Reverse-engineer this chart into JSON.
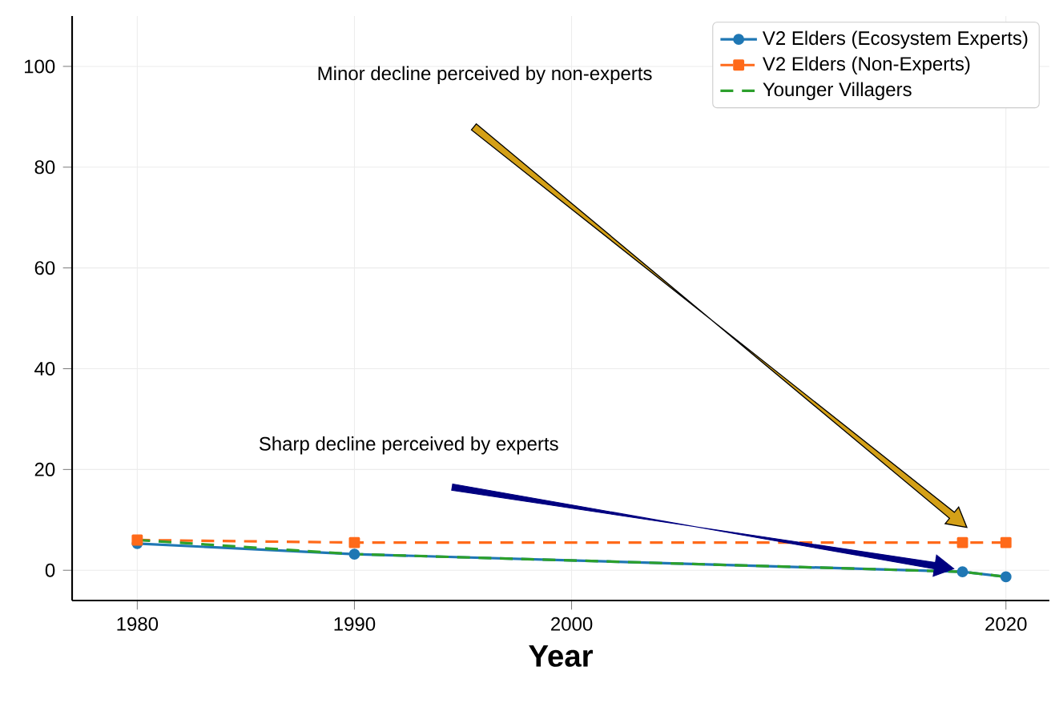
{
  "chart_data": {
    "type": "line",
    "xlabel": "Year",
    "x": [
      1980,
      1990,
      2018,
      2020
    ],
    "xlim": [
      1977,
      2022
    ],
    "xticks": [
      1980,
      1990,
      2000,
      2020
    ],
    "ylim": [
      -6,
      110
    ],
    "yticks": [
      0,
      20,
      40,
      60,
      80,
      100
    ],
    "series": [
      {
        "name": "V2 Elders (Ecosystem Experts)",
        "color": "#1f77b4",
        "values": [
          5.3,
          3.2,
          -0.3,
          -1.3
        ],
        "marker": "circle",
        "line_style": "solid"
      },
      {
        "name": "V2 Elders (Non-Experts)",
        "color": "#ff6a1a",
        "values": [
          6,
          5.5,
          5.5,
          5.5
        ],
        "marker": "square",
        "line_style": "dashed"
      },
      {
        "name": "Younger Villagers",
        "color": "#2ca02c",
        "values": [
          6,
          3.2,
          -0.3,
          -1.3
        ],
        "marker": "none",
        "line_style": "dashed"
      }
    ],
    "annotations": [
      "Minor decline perceived by non-experts",
      "Sharp decline perceived by experts"
    ],
    "grid": true,
    "legend": "top right"
  }
}
